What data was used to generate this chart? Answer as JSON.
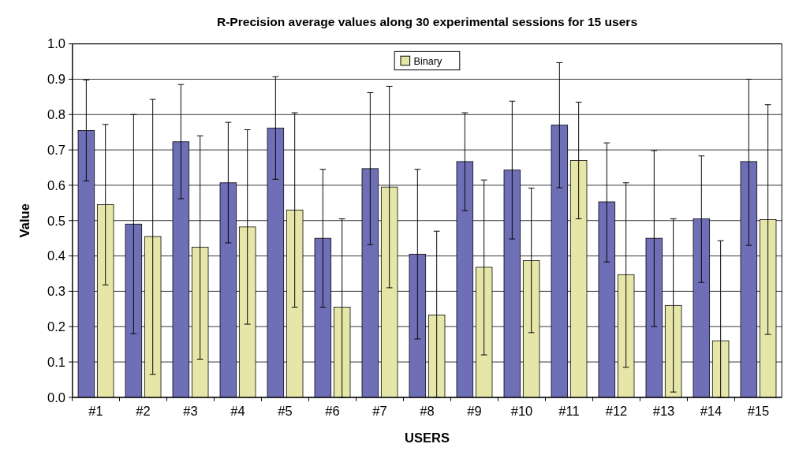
{
  "chart_data": {
    "type": "bar",
    "title": "R-Precision average values along 30 experimental sessions for 15 users",
    "xlabel": "USERS",
    "ylabel": "Value",
    "categories": [
      "#1",
      "#2",
      "#3",
      "#4",
      "#5",
      "#6",
      "#7",
      "#8",
      "#9",
      "#10",
      "#11",
      "#12",
      "#13",
      "#14",
      "#15"
    ],
    "series": [
      {
        "color": "#6f6fb8",
        "values": [
          0.755,
          0.49,
          0.723,
          0.607,
          0.762,
          0.45,
          0.647,
          0.405,
          0.667,
          0.643,
          0.77,
          0.553,
          0.45,
          0.505,
          0.667
        ],
        "errors": [
          [
            0.612,
            0.898
          ],
          [
            0.18,
            0.8
          ],
          [
            0.562,
            0.885
          ],
          [
            0.437,
            0.778
          ],
          [
            0.617,
            0.907
          ],
          [
            0.255,
            0.645
          ],
          [
            0.432,
            0.862
          ],
          [
            0.165,
            0.645
          ],
          [
            0.528,
            0.805
          ],
          [
            0.448,
            0.838
          ],
          [
            0.593,
            0.947
          ],
          [
            0.383,
            0.72
          ],
          [
            0.2,
            0.698
          ],
          [
            0.325,
            0.683
          ],
          [
            0.43,
            0.9
          ]
        ]
      },
      {
        "name": "Binary",
        "color": "#e6e6a8",
        "values": [
          0.545,
          0.455,
          0.425,
          0.482,
          0.53,
          0.255,
          0.595,
          0.233,
          0.368,
          0.387,
          0.67,
          0.347,
          0.26,
          0.16,
          0.503
        ],
        "errors": [
          [
            0.318,
            0.772
          ],
          [
            0.065,
            0.843
          ],
          [
            0.108,
            0.74
          ],
          [
            0.207,
            0.757
          ],
          [
            0.255,
            0.805
          ],
          [
            0,
            0.505
          ],
          [
            0.31,
            0.88
          ],
          [
            0,
            0.47
          ],
          [
            0.12,
            0.615
          ],
          [
            0.183,
            0.592
          ],
          [
            0.505,
            0.835
          ],
          [
            0.085,
            0.607
          ],
          [
            0.015,
            0.505
          ],
          [
            0,
            0.443
          ],
          [
            0.178,
            0.828
          ]
        ]
      }
    ],
    "ylim": [
      0,
      1
    ],
    "yticks": [
      {
        "value": 0,
        "label": "0.0"
      },
      {
        "value": 0.1,
        "label": "0.1"
      },
      {
        "value": 0.2,
        "label": "0.2"
      },
      {
        "value": 0.3,
        "label": "0.3"
      },
      {
        "value": 0.4,
        "label": "0.4"
      },
      {
        "value": 0.5,
        "label": "0.5"
      },
      {
        "value": 0.6,
        "label": "0.6"
      },
      {
        "value": 0.7,
        "label": "0.7"
      },
      {
        "value": 0.8,
        "label": "0.8"
      },
      {
        "value": 0.9,
        "label": "0.9"
      },
      {
        "value": 1,
        "label": "1.0"
      }
    ],
    "grid": "y",
    "legend": "top"
  }
}
